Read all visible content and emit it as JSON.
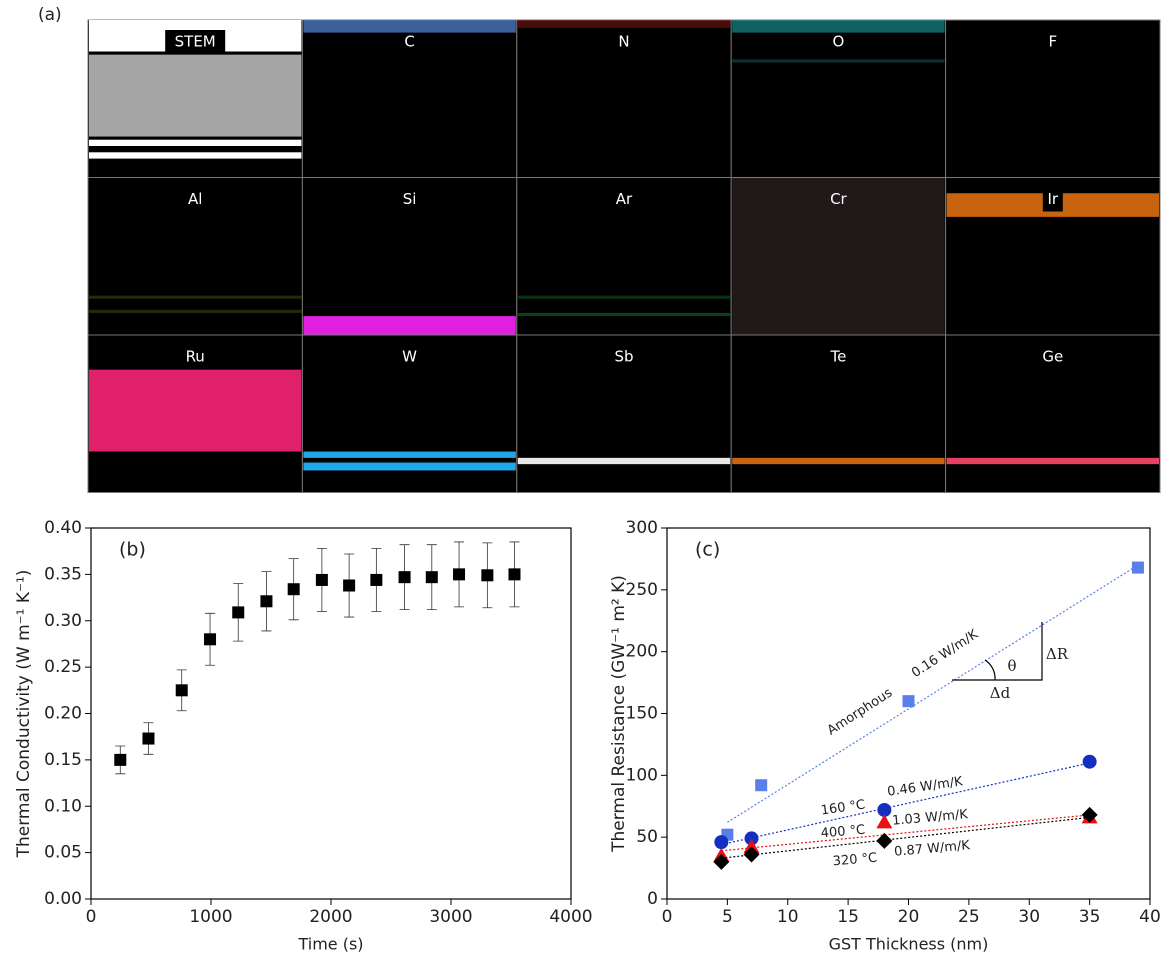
{
  "panel_a": {
    "label": "(a)",
    "tiles": [
      {
        "label": "STEM",
        "color": "#ffffff"
      },
      {
        "label": "C",
        "color": "#4a78c0"
      },
      {
        "label": "N",
        "color": "#8b1a1a"
      },
      {
        "label": "O",
        "color": "#20a0a0"
      },
      {
        "label": "F",
        "color": "#202020"
      },
      {
        "label": "Al",
        "color": "#808020"
      },
      {
        "label": "Si",
        "color": "#e020e0"
      },
      {
        "label": "Ar",
        "color": "#20a040"
      },
      {
        "label": "Cr",
        "color": "#e0a0b0"
      },
      {
        "label": "Ir",
        "color": "#c86410"
      },
      {
        "label": "Ru",
        "color": "#e0206a"
      },
      {
        "label": "W",
        "color": "#20a8e8"
      },
      {
        "label": "Sb",
        "color": "#e8e8e8"
      },
      {
        "label": "Te",
        "color": "#c86410"
      },
      {
        "label": "Ge",
        "color": "#e84060"
      }
    ]
  },
  "chart_data": [
    {
      "type": "scatter",
      "panel_label": "(b)",
      "x_label": "Time (s)",
      "y_label": "Thermal Conductivity (W m⁻¹ K⁻¹)",
      "xlim": [
        0,
        4000
      ],
      "xticks": [
        0,
        1000,
        2000,
        3000,
        4000
      ],
      "ylim": [
        0,
        0.4
      ],
      "yticks": [
        {
          "value": 0,
          "label": "0.00"
        },
        0.05,
        {
          "value": 0.1,
          "label": "0.10"
        },
        0.15,
        {
          "value": 0.2,
          "label": "0.20"
        },
        0.25,
        {
          "value": 0.3,
          "label": "0.30"
        },
        0.35,
        {
          "value": 0.4,
          "label": "0.40"
        }
      ],
      "series": [
        {
          "color": "#000000",
          "marker": "square",
          "x": [
            244,
            479,
            756,
            992,
            1227,
            1462,
            1689,
            1924,
            2151,
            2378,
            2613,
            2840,
            3067,
            3303,
            3529
          ],
          "values": [
            0.15,
            0.173,
            0.225,
            0.28,
            0.309,
            0.321,
            0.334,
            0.344,
            0.338,
            0.344,
            0.347,
            0.347,
            0.35,
            0.349,
            0.35
          ],
          "errors": [
            0.015,
            0.017,
            0.022,
            0.028,
            0.031,
            0.032,
            0.033,
            0.034,
            0.034,
            0.034,
            0.035,
            0.035,
            0.035,
            0.035,
            0.035
          ]
        }
      ]
    },
    {
      "type": "scatter",
      "panel_label": "(c)",
      "x_label": "GST Thickness (nm)",
      "y_label": "Thermal Resistance (GW⁻¹ m² K)",
      "xlim": [
        0,
        40
      ],
      "xticks": [
        0,
        5,
        10,
        15,
        20,
        25,
        30,
        35,
        40
      ],
      "ylim": [
        0,
        300
      ],
      "yticks": [
        0,
        50,
        100,
        150,
        200,
        250,
        300
      ],
      "series": [
        {
          "name": "Amorphous",
          "slope_label": "0.16 W/m/K",
          "color": "#5b7fe8",
          "marker": "square",
          "x": [
            5,
            7.8,
            20,
            39
          ],
          "values": [
            52,
            92,
            160,
            268
          ],
          "fit": {
            "x": [
              5,
              39
            ],
            "values": [
              62,
              270
            ]
          }
        },
        {
          "name": "160 °C",
          "slope_label": "0.46 W/m/K",
          "color": "#1530c0",
          "marker": "circle",
          "x": [
            4.5,
            7,
            18,
            35
          ],
          "values": [
            46,
            49,
            72,
            111
          ],
          "fit": {
            "x": [
              4.5,
              35
            ],
            "values": [
              44,
              110
            ]
          }
        },
        {
          "name": "400 °C",
          "slope_label": "1.03 W/m/K",
          "color": "#e81010",
          "marker": "triangle",
          "x": [
            4.5,
            7,
            18,
            35
          ],
          "values": [
            35,
            42,
            62,
            66
          ],
          "fit": {
            "x": [
              4.5,
              35
            ],
            "values": [
              39,
              68
            ]
          }
        },
        {
          "name": "320 °C",
          "slope_label": "0.87 W/m/K",
          "color": "#000000",
          "marker": "diamond",
          "x": [
            4.5,
            7,
            18,
            35
          ],
          "values": [
            30,
            36,
            47,
            68
          ],
          "fit": {
            "x": [
              4.5,
              35
            ],
            "values": [
              33,
              66
            ]
          }
        }
      ],
      "annotations": [
        "θ",
        "ΔR",
        "Δd"
      ]
    }
  ]
}
